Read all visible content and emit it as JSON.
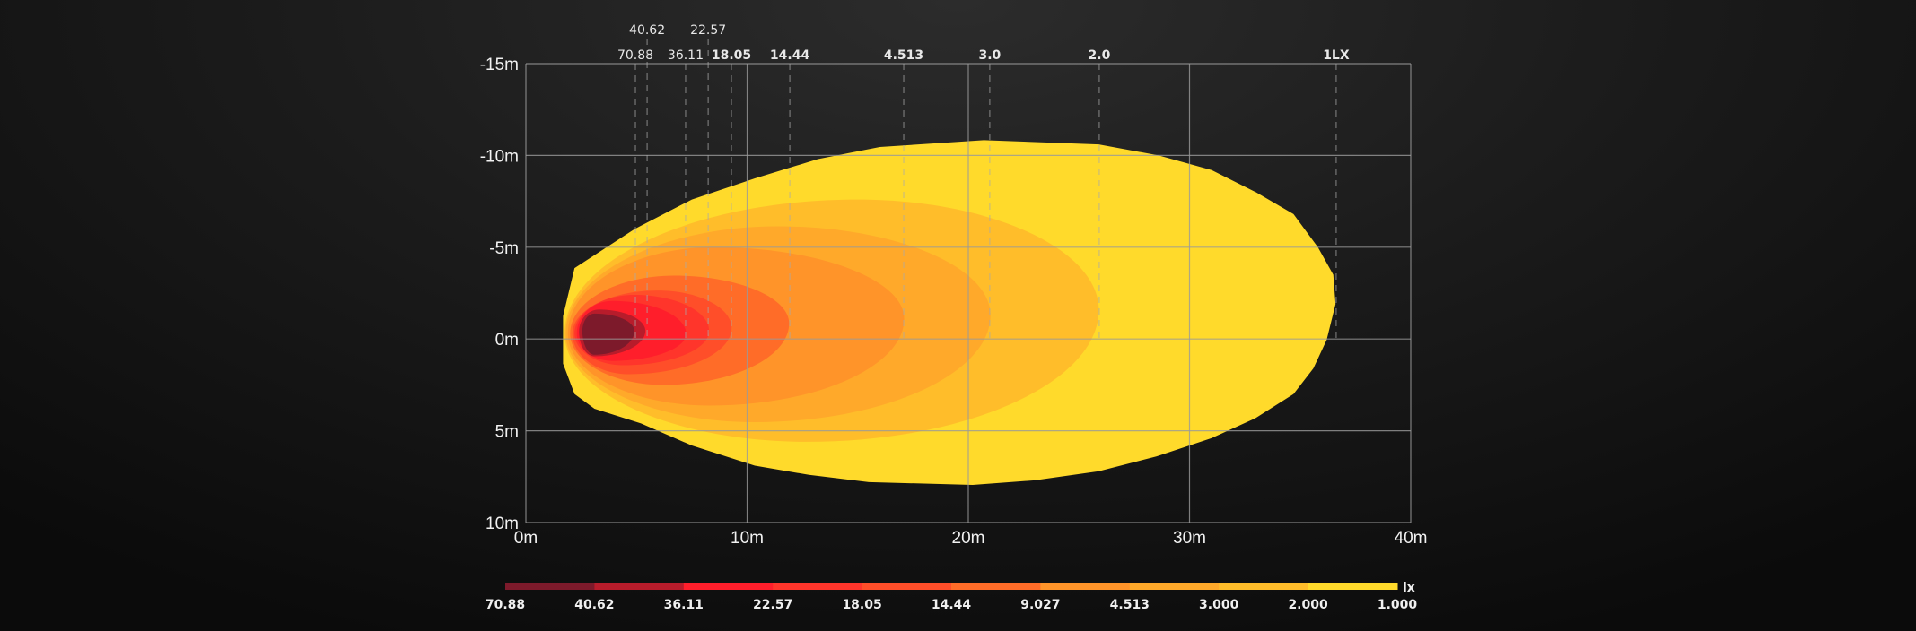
{
  "chart_data": {
    "type": "contour",
    "title": "",
    "xlabel": "",
    "ylabel": "",
    "xlim": [
      0,
      40
    ],
    "ylim": [
      -15,
      10
    ],
    "x_ticks": [
      "0m",
      "10m",
      "20m",
      "30m",
      "40m"
    ],
    "x_tick_values": [
      0,
      10,
      20,
      30,
      40
    ],
    "y_ticks": [
      "-15m",
      "-10m",
      "-5m",
      "0m",
      "5m",
      "10m"
    ],
    "y_tick_values": [
      -15,
      -10,
      -5,
      0,
      5,
      10
    ],
    "grid": true,
    "unit": "lx",
    "top_markers": [
      {
        "label": "70.88",
        "x": 4.95,
        "row": 2
      },
      {
        "label": "40.62",
        "x": 5.48,
        "row": 1
      },
      {
        "label": "36.11",
        "x": 7.22,
        "row": 2
      },
      {
        "label": "22.57",
        "x": 8.24,
        "row": 1
      },
      {
        "label": "18.05",
        "x": 9.29,
        "row": 2
      },
      {
        "label": "14.44",
        "x": 11.93,
        "row": 2
      },
      {
        "label": "4.513",
        "x": 17.08,
        "row": 2
      },
      {
        "label": "3.0",
        "x": 20.97,
        "row": 2
      },
      {
        "label": "2.0",
        "x": 25.92,
        "row": 2
      },
      {
        "label": "1LX",
        "x": 36.63,
        "row": 2
      }
    ],
    "legend": {
      "labels": [
        "70.88",
        "40.62",
        "36.11",
        "22.57",
        "18.05",
        "14.44",
        "9.027",
        "4.513",
        "3.000",
        "2.000",
        "1.000"
      ],
      "colors": [
        "#7d1a2b",
        "#b81c2b",
        "#ff1e2b",
        "#ff352b",
        "#ff4e29",
        "#ff6c28",
        "#ff9429",
        "#ffa92a",
        "#ffbd2a",
        "#ffda2b"
      ],
      "unit": "lx",
      "placement": "bottom"
    },
    "contours": [
      {
        "level": 1.0,
        "color": "#ffda2b",
        "points": [
          [
            1.68,
            1.35
          ],
          [
            1.68,
            -1.25
          ],
          [
            2.2,
            -3.86
          ],
          [
            4.9,
            -5.98
          ],
          [
            7.5,
            -7.6
          ],
          [
            10.35,
            -8.75
          ],
          [
            13.2,
            -9.8
          ],
          [
            16.0,
            -10.46
          ],
          [
            20.7,
            -10.83
          ],
          [
            25.9,
            -10.6
          ],
          [
            28.6,
            -10.0
          ],
          [
            31.0,
            -9.2
          ],
          [
            33.0,
            -8.0
          ],
          [
            34.7,
            -6.8
          ],
          [
            35.8,
            -5.0
          ],
          [
            36.5,
            -3.5
          ],
          [
            36.6,
            -1.9
          ],
          [
            36.2,
            0.05
          ],
          [
            35.6,
            1.6
          ],
          [
            34.7,
            3.0
          ],
          [
            33.0,
            4.3
          ],
          [
            31.0,
            5.4
          ],
          [
            28.5,
            6.4
          ],
          [
            25.9,
            7.2
          ],
          [
            23.0,
            7.7
          ],
          [
            20.2,
            7.95
          ],
          [
            15.5,
            7.8
          ],
          [
            12.8,
            7.4
          ],
          [
            10.35,
            6.9
          ],
          [
            7.5,
            5.8
          ],
          [
            5.2,
            4.6
          ],
          [
            3.1,
            3.8
          ],
          [
            2.2,
            3.0
          ]
        ]
      },
      {
        "level": 2.0,
        "color": "#ffbd2a",
        "left": [
          1.75,
          -0.3
        ],
        "top": [
          15.0,
          -7.6
        ],
        "right": [
          25.9,
          -1.58
        ],
        "bottom": [
          12.7,
          5.6
        ]
      },
      {
        "level": 3.0,
        "color": "#ffa92a",
        "left": [
          1.8,
          -0.3
        ],
        "top": [
          11.4,
          -6.14
        ],
        "right": [
          21.0,
          -1.3
        ],
        "bottom": [
          10.35,
          4.53
        ]
      },
      {
        "level": 4.513,
        "color": "#ff9429",
        "left": [
          1.9,
          -0.3
        ],
        "top": [
          8.5,
          -5.0
        ],
        "right": [
          17.1,
          -1.1
        ],
        "bottom": [
          8.3,
          3.63
        ]
      },
      {
        "level": 9.027,
        "color": "#ff6c28",
        "left": [
          2.0,
          -0.3
        ],
        "top": [
          6.7,
          -3.45
        ],
        "right": [
          11.9,
          -0.85
        ],
        "bottom": [
          6.2,
          2.5
        ]
      },
      {
        "level": 14.44,
        "color": "#ff4e29",
        "left": [
          2.1,
          -0.3
        ],
        "top": [
          5.95,
          -2.64
        ],
        "right": [
          9.3,
          -0.6
        ],
        "bottom": [
          4.66,
          1.92
        ]
      },
      {
        "level": 18.05,
        "color": "#ff352b",
        "left": [
          2.2,
          -0.3
        ],
        "top": [
          4.9,
          -2.4
        ],
        "right": [
          8.28,
          -0.44
        ],
        "bottom": [
          4.4,
          1.43
        ]
      },
      {
        "level": 22.57,
        "color": "#ff1e2b",
        "left": [
          2.3,
          -0.3
        ],
        "top": [
          3.9,
          -2.07
        ],
        "right": [
          7.24,
          -0.28
        ],
        "bottom": [
          3.9,
          1.19
        ]
      },
      {
        "level": 36.11,
        "color": "#b81c2b",
        "left": [
          2.4,
          -0.4
        ],
        "top": [
          3.3,
          -1.6
        ],
        "right": [
          5.4,
          -0.44
        ],
        "bottom": [
          3.1,
          0.94
        ]
      },
      {
        "level": 40.62,
        "color": "#7d1a2b",
        "left": [
          2.55,
          -0.44
        ],
        "top": [
          3.1,
          -1.38
        ],
        "right": [
          4.9,
          -0.44
        ],
        "bottom": [
          3.1,
          0.86
        ]
      }
    ]
  }
}
